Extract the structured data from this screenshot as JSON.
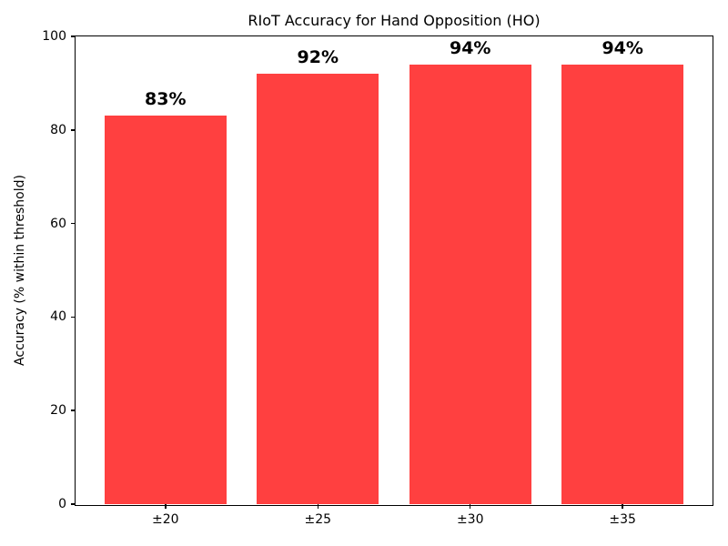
{
  "chart_data": {
    "type": "bar",
    "title": "RIoT Accuracy for Hand Opposition (HO)",
    "xlabel": "",
    "ylabel": "Accuracy (% within threshold)",
    "categories": [
      "±20",
      "±25",
      "±30",
      "±35"
    ],
    "values": [
      83,
      92,
      94,
      94
    ],
    "value_labels": [
      "83%",
      "92%",
      "94%",
      "94%"
    ],
    "ylim": [
      0,
      100
    ],
    "yticks": [
      0,
      20,
      40,
      60,
      80,
      100
    ],
    "bar_color": "#ff4040",
    "axis_color": "#000000",
    "grid": false,
    "legend": "none",
    "bar_relative_width": 0.8
  }
}
